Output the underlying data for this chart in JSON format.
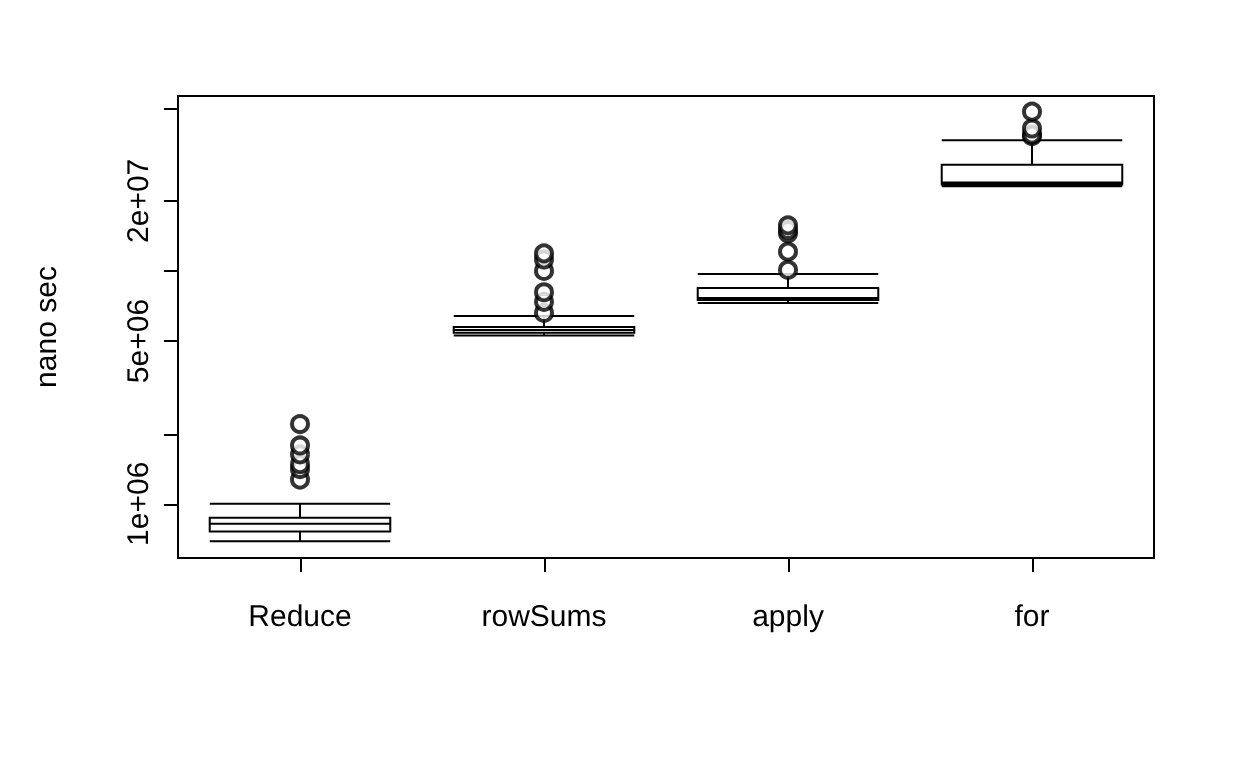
{
  "chart_data": {
    "type": "box",
    "ylabel": "nano sec",
    "categories": [
      "Reduce",
      "rowSums",
      "apply",
      "for"
    ],
    "boxes": [
      {
        "low": 690000,
        "q1": 760000,
        "median": 820000,
        "q3": 870000,
        "high": 1000000,
        "outliers": [
          1270000,
          1410000,
          1480000,
          1630000,
          1780000,
          2200000
        ]
      },
      {
        "low": 5280000,
        "q1": 5430000,
        "median": 5580000,
        "q3": 5740000,
        "high": 6400000,
        "outliers": [
          6600000,
          7370000,
          8100000,
          10000000,
          11200000,
          11900000
        ]
      },
      {
        "low": 7280000,
        "q1": 7500000,
        "median": 7650000,
        "q3": 8440000,
        "high": 9700000,
        "outliers": [
          10100000,
          12100000,
          14500000,
          15000000,
          15700000
        ]
      },
      {
        "low": 23100000,
        "q1": 23500000,
        "median": 24000000,
        "q3": 28600000,
        "high": 36400000,
        "outliers": [
          37900000,
          38500000,
          40900000,
          48300000
        ]
      }
    ],
    "color": "#000000",
    "marker": "circle",
    "log": "y",
    "grid": false,
    "ylim": [
      585000,
      56400000
    ],
    "yticks": [
      {
        "value": 1000000,
        "label": "1e+06"
      },
      {
        "value": 2000000,
        "label": null
      },
      {
        "value": 5000000,
        "label": "5e+06"
      },
      {
        "value": 10000000,
        "label": null
      },
      {
        "value": 20000000,
        "label": "2e+07"
      },
      {
        "value": 50000000,
        "label": null
      }
    ]
  }
}
